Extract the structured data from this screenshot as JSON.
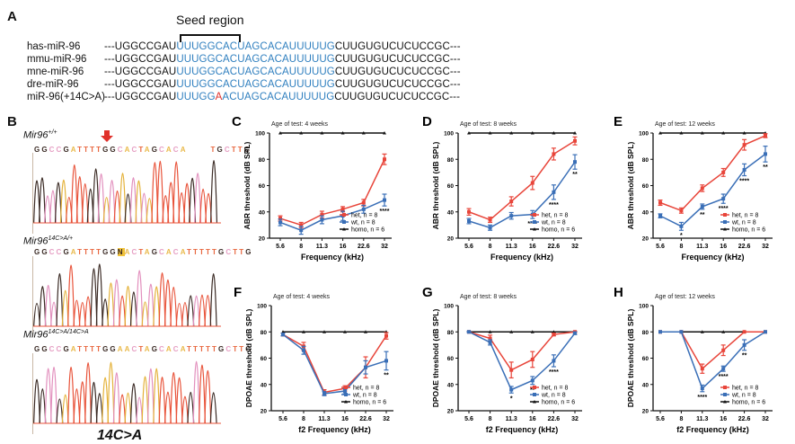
{
  "panels": {
    "A": {
      "letter": "A",
      "seed_label": "Seed region",
      "rows": [
        {
          "name": "has-miR-96",
          "pre": "---UGGCCGAU",
          "blue1": "UUUGGCACUAGCACAUUUUUG",
          "mut": "",
          "blue2": "",
          "post": "CUUGUGUCUCUCCGC---"
        },
        {
          "name": "mmu-miR-96",
          "pre": "---UGGCCGAU",
          "blue1": "UUUGGCACUAGCACAUUUUUG",
          "mut": "",
          "blue2": "",
          "post": "CUUGUGUCUCUCCGC---"
        },
        {
          "name": "mne-miR-96",
          "pre": "---UGGCCGAU",
          "blue1": "UUUGGCACUAGCACAUUUUUG",
          "mut": "",
          "blue2": "",
          "post": "CUUGUGUCUCUCCGC---"
        },
        {
          "name": "dre-miR-96",
          "pre": "---UGGCCGAU",
          "blue1": "UUUGGCACUAGCACAUUUUUG",
          "mut": "",
          "blue2": "",
          "post": "CUUGUGUCUCUCCGC---"
        },
        {
          "name": "miR-96(+14C>A)",
          "pre": "---UGGCCGAU",
          "blue1": "UUUGG",
          "mut": "A",
          "blue2": "ACUAGCACAUUUUUG",
          "post": "CUUGUGUCUCUCCGC---"
        }
      ]
    },
    "B": {
      "letter": "B",
      "traces": [
        {
          "label_base": "Mir96",
          "label_sup": "+/+",
          "sequence": "GGCCGATTTTGGCACTAGCACA      TGCTTG"
        },
        {
          "label_base": "Mir96",
          "label_sup": "14C>A/+",
          "sequence": "GGCCGATTTTGGNACTAGCACATTTTTGCTTG"
        },
        {
          "label_base": "Mir96",
          "label_sup": "14C>A/14C>A",
          "sequence": "GGCCGATTTTGGAACTAGCACATTTTTGCTTG"
        }
      ],
      "clipped_caption": "14C>A"
    }
  },
  "colors": {
    "het": "#e8453a",
    "wt": "#3a6fb7",
    "homo": "#111111",
    "seed_blue": "#2f7fbf",
    "mutation_red": "#e0302a"
  },
  "chart_data": [
    {
      "id": "C",
      "letter": "C",
      "type": "line",
      "title": "Age of test: 4 weeks",
      "xlabel": "Frequency (kHz)",
      "ylabel": "ABR threshold (dB SPL)",
      "categories": [
        "5.6",
        "8",
        "11.3",
        "16",
        "22.6",
        "32"
      ],
      "ylim": [
        20,
        100
      ],
      "yticks": [
        20,
        40,
        60,
        80,
        100
      ],
      "legend_position": "bottom-right",
      "series": [
        {
          "name": "het, n = 8",
          "key": "het",
          "values": [
            35,
            30,
            38,
            42,
            47,
            80
          ],
          "errors": [
            2,
            2,
            2.5,
            2,
            2.5,
            4
          ]
        },
        {
          "name": "wt, n = 8",
          "key": "wt",
          "values": [
            32,
            26,
            34,
            37,
            42,
            49
          ],
          "errors": [
            2.5,
            3,
            3,
            3.5,
            3,
            4.5
          ]
        },
        {
          "name": "homo, n = 6",
          "key": "homo",
          "values": [
            100,
            100,
            100,
            100,
            100,
            100
          ],
          "errors": [
            0,
            0,
            0,
            0,
            0,
            0
          ]
        }
      ],
      "significance": [
        "",
        "",
        "",
        "",
        "",
        "****"
      ]
    },
    {
      "id": "D",
      "letter": "D",
      "type": "line",
      "title": "Age of test: 8 weeks",
      "xlabel": "Frequency (kHz)",
      "ylabel": "ABR threshold (dB SPL)",
      "categories": [
        "5.6",
        "8",
        "11.3",
        "16",
        "22.6",
        "32"
      ],
      "ylim": [
        20,
        100
      ],
      "yticks": [
        20,
        40,
        60,
        80,
        100
      ],
      "legend_position": "bottom-right",
      "series": [
        {
          "name": "het, n = 8",
          "key": "het",
          "values": [
            40,
            34,
            48,
            62,
            84,
            94
          ],
          "errors": [
            2.5,
            2,
            3.5,
            5,
            4.5,
            3
          ]
        },
        {
          "name": "wt, n = 8",
          "key": "wt",
          "values": [
            33,
            28,
            37,
            38,
            55,
            78
          ],
          "errors": [
            2,
            2,
            2.5,
            3,
            5.5,
            5.5
          ]
        },
        {
          "name": "homo, n = 6",
          "key": "homo",
          "values": [
            100,
            100,
            100,
            100,
            100,
            100
          ],
          "errors": [
            0,
            0,
            0,
            0,
            0,
            0
          ]
        }
      ],
      "significance": [
        "",
        "",
        "",
        "****",
        "****",
        "**"
      ]
    },
    {
      "id": "E",
      "letter": "E",
      "type": "line",
      "title": "Age of test: 12 weeks",
      "xlabel": "Frequency (kHz)",
      "ylabel": "ABR threshold (dB SPL)",
      "categories": [
        "5.6",
        "8",
        "11.3",
        "16",
        "22.6",
        "32"
      ],
      "ylim": [
        20,
        100
      ],
      "yticks": [
        20,
        40,
        60,
        80,
        100
      ],
      "legend_position": "bottom-right",
      "series": [
        {
          "name": "het, n = 8",
          "key": "het",
          "values": [
            47,
            41,
            58,
            70,
            91,
            98
          ],
          "errors": [
            2,
            2,
            2.5,
            3,
            4,
            1.5
          ]
        },
        {
          "name": "wt, n = 8",
          "key": "wt",
          "values": [
            37,
            29,
            44,
            50,
            72,
            84
          ],
          "errors": [
            1.5,
            3,
            2,
            3.5,
            4.5,
            6
          ]
        },
        {
          "name": "homo, n = 6",
          "key": "homo",
          "values": [
            100,
            100,
            100,
            100,
            100,
            100
          ],
          "errors": [
            0,
            0,
            0,
            0,
            0,
            0
          ]
        }
      ],
      "significance": [
        "",
        "*",
        "**",
        "****",
        "****",
        "**"
      ]
    },
    {
      "id": "F",
      "letter": "F",
      "type": "line",
      "title": "Age of test: 4 weeks",
      "xlabel": "f2 Frequency (kHz)",
      "ylabel": "DPOAE threshold (dB SPL)",
      "categories": [
        "5.6",
        "8",
        "11.3",
        "16",
        "22.6",
        "32"
      ],
      "ylim": [
        20,
        100
      ],
      "yticks": [
        20,
        40,
        60,
        80,
        100
      ],
      "legend_position": "bottom-right",
      "series": [
        {
          "name": "het, n = 8",
          "key": "het",
          "values": [
            78,
            69,
            34,
            37,
            53,
            77
          ],
          "errors": [
            1,
            3,
            2,
            2,
            8,
            2.5
          ]
        },
        {
          "name": "wt, n = 8",
          "key": "wt",
          "values": [
            78,
            66,
            33,
            35,
            53,
            58
          ],
          "errors": [
            1,
            3,
            1.5,
            2,
            5,
            7
          ]
        },
        {
          "name": "homo, n = 6",
          "key": "homo",
          "values": [
            80,
            80,
            80,
            80,
            80,
            80
          ],
          "errors": [
            0,
            0,
            0,
            0,
            0,
            0
          ]
        }
      ],
      "significance": [
        "",
        "",
        "",
        "",
        "",
        "**"
      ]
    },
    {
      "id": "G",
      "letter": "G",
      "type": "line",
      "title": "Age of test: 8 weeks",
      "xlabel": "f2 Frequency (kHz)",
      "ylabel": "DPOAE threshold (dB SPL)",
      "categories": [
        "5.6",
        "8",
        "11.3",
        "16",
        "22.6",
        "32"
      ],
      "ylim": [
        20,
        100
      ],
      "yticks": [
        20,
        40,
        60,
        80,
        100
      ],
      "legend_position": "bottom-right",
      "series": [
        {
          "name": "het, n = 8",
          "key": "het",
          "values": [
            80,
            75,
            51,
            59,
            78,
            80
          ],
          "errors": [
            0.5,
            2.5,
            6,
            6,
            1,
            0.5
          ]
        },
        {
          "name": "wt, n = 8",
          "key": "wt",
          "values": [
            80,
            72,
            36,
            43,
            58,
            79
          ],
          "errors": [
            0.5,
            2,
            2.5,
            3,
            4.5,
            1
          ]
        },
        {
          "name": "homo, n = 6",
          "key": "homo",
          "values": [
            80,
            80,
            80,
            80,
            80,
            80
          ],
          "errors": [
            0,
            0,
            0,
            0,
            0,
            0
          ]
        }
      ],
      "significance": [
        "",
        "",
        "*",
        "**",
        "****",
        ""
      ]
    },
    {
      "id": "H",
      "letter": "H",
      "type": "line",
      "title": "Age of test: 12 weeks",
      "xlabel": "f2 Frequency (kHz)",
      "ylabel": "DPOAE threshold (dB SPL)",
      "categories": [
        "5.6",
        "8",
        "11.3",
        "16",
        "22.6",
        "32"
      ],
      "ylim": [
        20,
        100
      ],
      "yticks": [
        20,
        40,
        60,
        80,
        100
      ],
      "legend_position": "bottom-right",
      "series": [
        {
          "name": "het, n = 8",
          "key": "het",
          "values": [
            80,
            80,
            52,
            66,
            80,
            80
          ],
          "errors": [
            0,
            0,
            3.5,
            4,
            0,
            0
          ]
        },
        {
          "name": "wt, n = 8",
          "key": "wt",
          "values": [
            80,
            80,
            37,
            52,
            70,
            80
          ],
          "errors": [
            0,
            0,
            2.5,
            2,
            4,
            0
          ]
        },
        {
          "name": "homo, n = 6",
          "key": "homo",
          "values": [
            80,
            80,
            80,
            80,
            80,
            80
          ],
          "errors": [
            0,
            0,
            0,
            0,
            0,
            0
          ]
        }
      ],
      "significance": [
        "",
        "",
        "****",
        "****",
        "**",
        ""
      ]
    }
  ]
}
